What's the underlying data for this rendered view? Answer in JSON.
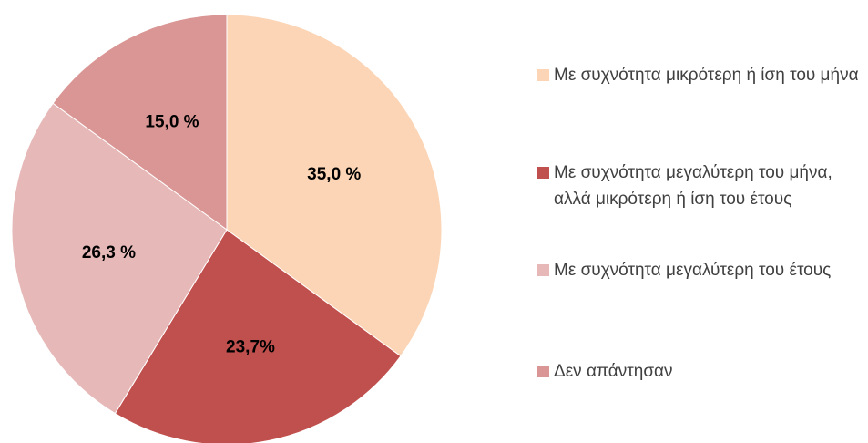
{
  "chart_data": {
    "type": "pie",
    "categories": [
      "Με συχνότητα μικρότερη ή ίση του μήνα",
      "Με συχνότητα μεγαλύτερη του μήνα, αλλά μικρότερη ή ίση του έτους",
      "Με συχνότητα μεγαλύτερη του έτους",
      "Δεν απάντησαν"
    ],
    "values": [
      35.0,
      23.7,
      26.3,
      15.0
    ],
    "value_labels": [
      "35,0 %",
      "23,7%",
      "26,3 %",
      "15,0 %"
    ],
    "colors": [
      "#fbd5b5",
      "#c0504d",
      "#e6b9b8",
      "#d99694"
    ],
    "legend": "right"
  }
}
